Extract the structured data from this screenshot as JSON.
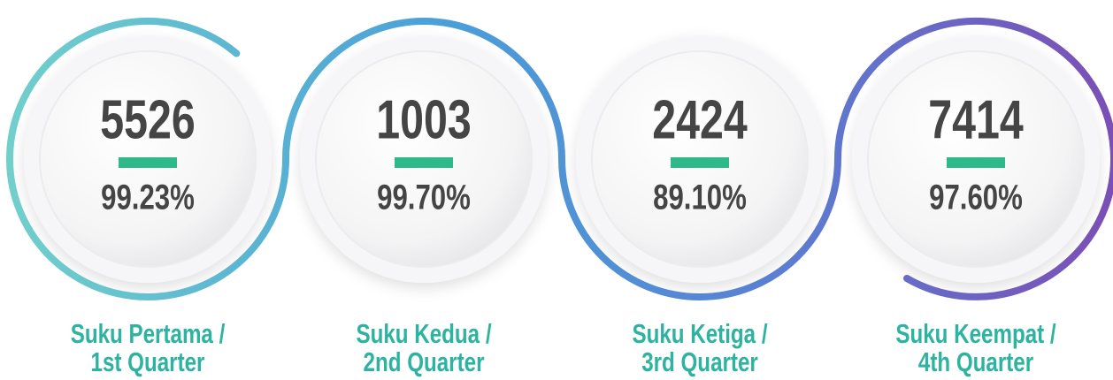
{
  "items": [
    {
      "value": "5526",
      "percent": "99.23%",
      "label": [
        "Suku Pertama /",
        "1st Quarter"
      ]
    },
    {
      "value": "1003",
      "percent": "99.70%",
      "label": [
        "Suku Kedua /",
        "2nd Quarter"
      ]
    },
    {
      "value": "2424",
      "percent": "89.10%",
      "label": [
        "Suku Ketiga /",
        "3rd Quarter"
      ]
    },
    {
      "value": "7414",
      "percent": "97.60%",
      "label": [
        "Suku Keempat /",
        "4th Quarter"
      ]
    }
  ]
}
